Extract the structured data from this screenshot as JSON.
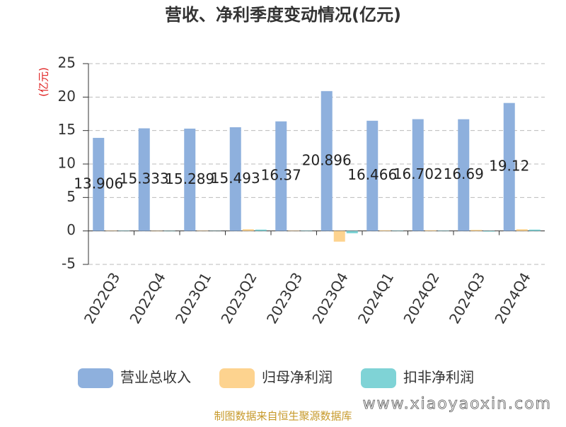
{
  "chart_data": {
    "type": "bar",
    "title": "营收、净利季度变动情况(亿元)",
    "y_label": "(亿元)",
    "categories": [
      "2022Q3",
      "2022Q4",
      "2023Q1",
      "2023Q2",
      "2023Q3",
      "2023Q4",
      "2024Q1",
      "2024Q2",
      "2024Q3",
      "2024Q4"
    ],
    "series": [
      {
        "name": "营业总收入",
        "color": "#8eb0dd",
        "show_value_labels": true,
        "values": [
          13.906,
          15.333,
          15.289,
          15.493,
          16.37,
          20.896,
          16.466,
          16.702,
          16.69,
          19.12
        ]
      },
      {
        "name": "归母净利润",
        "color": "#fdd38f",
        "show_value_labels": false,
        "values": [
          0.05,
          -0.05,
          0.05,
          0.25,
          0.05,
          -1.6,
          0.1,
          0.1,
          0.15,
          0.25
        ]
      },
      {
        "name": "扣非净利润",
        "color": "#7fd3d6",
        "show_value_labels": false,
        "values": [
          0.05,
          -0.05,
          0.03,
          0.2,
          0.05,
          -0.35,
          0.05,
          0.05,
          -0.1,
          0.2
        ]
      }
    ],
    "ylim": [
      -5,
      25
    ],
    "yticks": [
      -5,
      0,
      5,
      10,
      15,
      20,
      25
    ],
    "grid": true,
    "source": "制图数据来自恒生聚源数据库",
    "watermark": "www.xiaoyaoxin.com"
  }
}
